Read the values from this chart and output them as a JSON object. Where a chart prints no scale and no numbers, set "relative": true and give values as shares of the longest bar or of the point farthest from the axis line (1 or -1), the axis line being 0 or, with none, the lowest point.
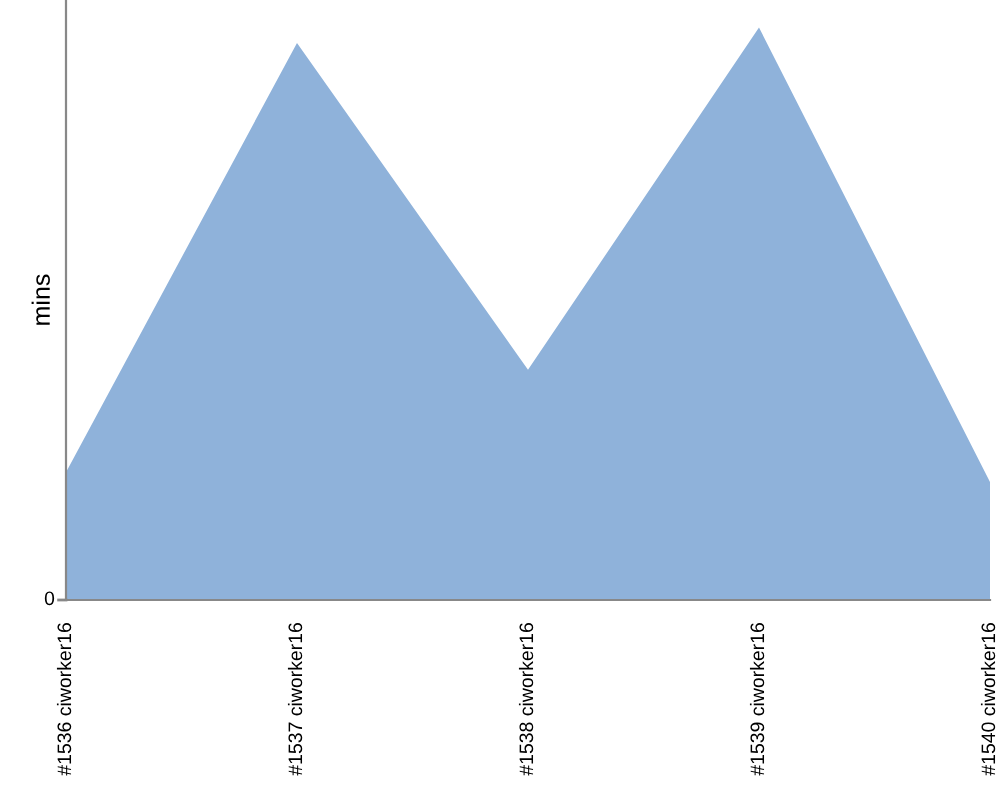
{
  "chart_data": {
    "type": "area",
    "ylabel": "mins",
    "relative": true,
    "categories": [
      "#1536 ciworker16",
      "#1537 ciworker16",
      "#1538 ciworker16",
      "#1539 ciworker16",
      "#1540 ciworker16"
    ],
    "series": [
      {
        "color": "#8fb2da",
        "values": [
          0.223,
          0.973,
          0.402,
          1,
          0.206
        ]
      }
    ],
    "annotations": [
      "0"
    ],
    "grid": false,
    "legend": false
  }
}
